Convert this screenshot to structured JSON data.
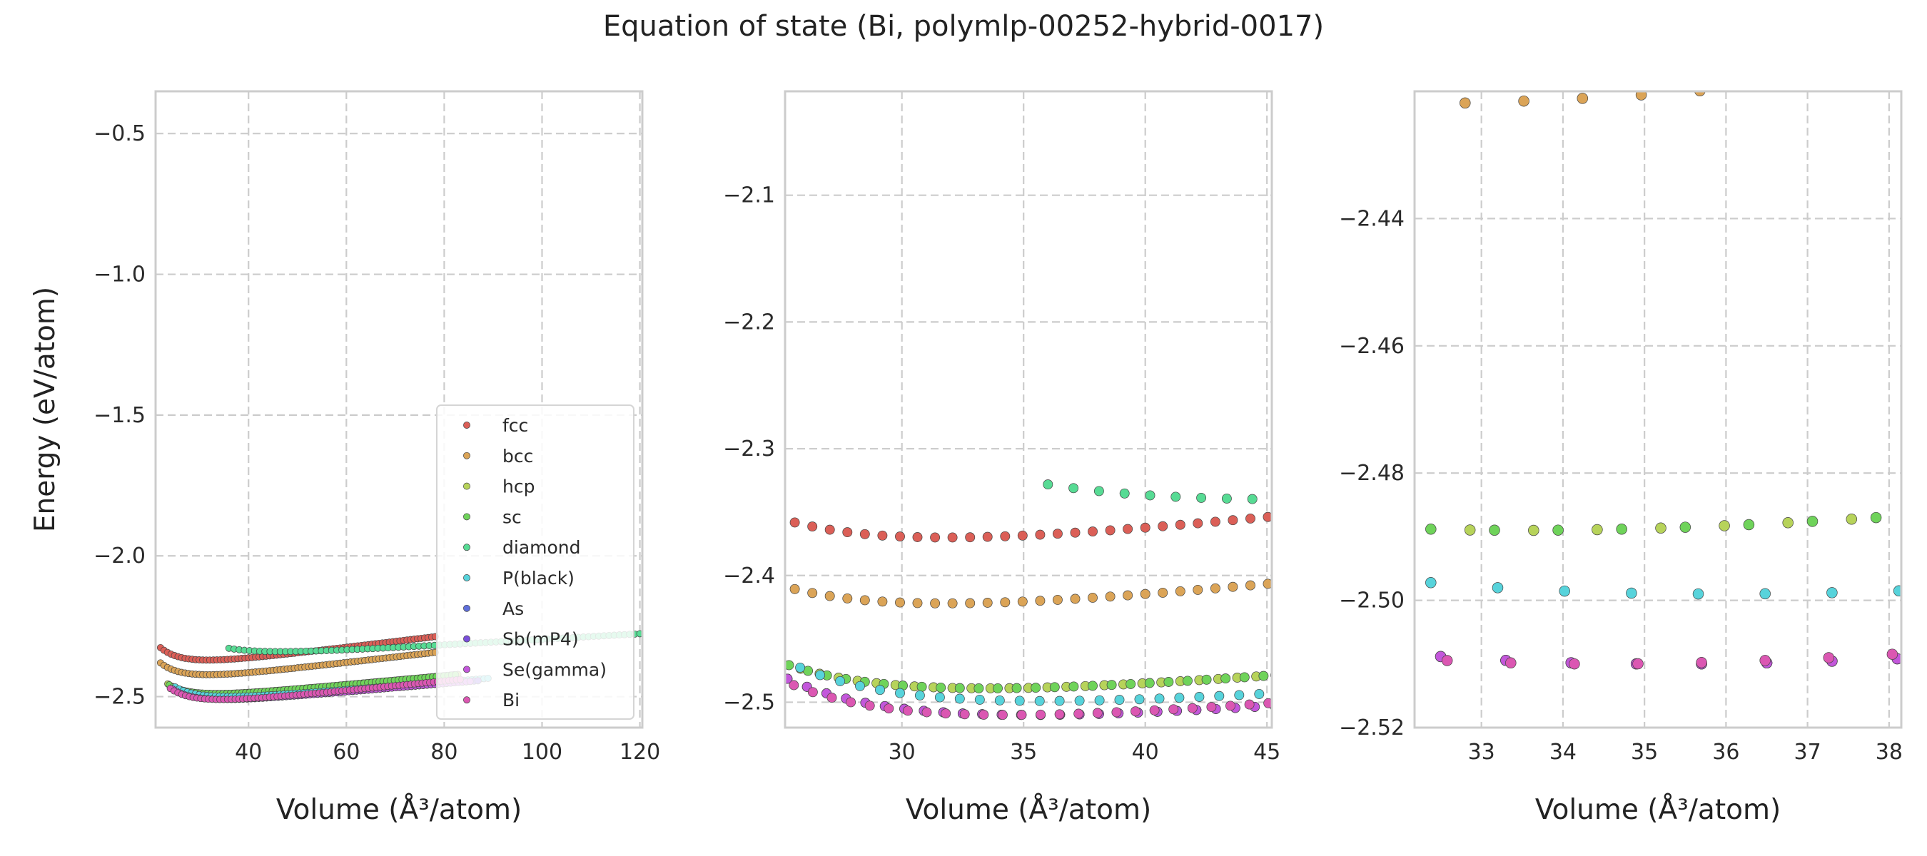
{
  "title": "Equation of state (Bi, polymlp-00252-hybrid-0017)",
  "colors": {
    "fcc": "#db5f57",
    "bcc": "#dba457",
    "hcp": "#b7d35a",
    "sc": "#6fd35a",
    "diamond": "#57db94",
    "P(black)": "#57d3db",
    "As": "#5f6fdb",
    "Sb(mP4)": "#7a4fdb",
    "Se(gamma)": "#c357db",
    "Bi": "#db57b2"
  },
  "chart_data": [
    {
      "type": "scatter",
      "xlabel": "Volume (Å³/atom)",
      "ylabel": "Energy (eV/atom)",
      "xlim": [
        21,
        120.5
      ],
      "ylim": [
        -2.61,
        -0.35
      ],
      "xticks": [
        "40",
        "60",
        "80",
        "100",
        "120"
      ],
      "yticks": [
        "−0.5",
        "−1.0",
        "−1.5",
        "−2.0",
        "−2.5"
      ],
      "grid": true,
      "legend": {
        "placement": "lower-right",
        "entries": [
          "fcc",
          "bcc",
          "hcp",
          "sc",
          "diamond",
          "P(black)",
          "As",
          "Sb(mP4)",
          "Se(gamma)",
          "Bi"
        ]
      },
      "series": [
        {
          "name": "fcc",
          "V0": 31.8,
          "E0": -2.37,
          "B": 0.0021,
          "n": 4.6,
          "vmin": 22.0,
          "vmax": 78.8,
          "step": 0.72
        },
        {
          "name": "bcc",
          "V0": 31.8,
          "E0": -2.422,
          "B": 0.002,
          "n": 4.6,
          "vmin": 22.0,
          "vmax": 78.8,
          "step": 0.72
        },
        {
          "name": "hcp",
          "V0": 33.5,
          "E0": -2.489,
          "B": 0.0016,
          "n": 4.8,
          "vmin": 23.5,
          "vmax": 83.5,
          "step": 0.78
        },
        {
          "name": "sc",
          "V0": 33.5,
          "E0": -2.489,
          "B": 0.0016,
          "n": 4.8,
          "vmin": 23.8,
          "vmax": 83.0,
          "step": 0.78
        },
        {
          "name": "diamond",
          "V0": 46.5,
          "E0": -2.34,
          "B": 0.001,
          "n": 4.5,
          "vmin": 36.0,
          "vmax": 120.5,
          "step": 1.05
        },
        {
          "name": "P(black)",
          "V0": 35.9,
          "E0": -2.499,
          "B": 0.0014,
          "n": 4.8,
          "vmin": 25.0,
          "vmax": 89.0,
          "step": 0.82
        },
        {
          "name": "As",
          "V0": 35.3,
          "E0": -2.51,
          "B": 0.0015,
          "n": 4.8,
          "vmin": 24.5,
          "vmax": 87.0,
          "step": 0.8
        },
        {
          "name": "Sb(mP4)",
          "V0": 35.3,
          "E0": -2.51,
          "B": 0.0015,
          "n": 4.8,
          "vmin": 24.5,
          "vmax": 87.0,
          "step": 0.8
        },
        {
          "name": "Se(gamma)",
          "V0": 35.3,
          "E0": -2.51,
          "B": 0.0015,
          "n": 4.8,
          "vmin": 24.5,
          "vmax": 86.0,
          "step": 0.8
        },
        {
          "name": "Bi",
          "V0": 34.4,
          "E0": -2.51,
          "B": 0.0017,
          "n": 4.8,
          "vmin": 24.0,
          "vmax": 84.0,
          "step": 0.78
        }
      ]
    },
    {
      "type": "scatter",
      "xlabel": "Volume (Å³/atom)",
      "ylabel": "",
      "xlim": [
        25.2,
        45.2
      ],
      "ylim": [
        -2.52,
        -2.018
      ],
      "xticks": [
        "30",
        "35",
        "40",
        "45"
      ],
      "yticks": [
        "−2.1",
        "−2.2",
        "−2.3",
        "−2.4",
        "−2.5"
      ],
      "grid": true,
      "series_ref": "same as panel 1"
    },
    {
      "type": "scatter",
      "xlabel": "Volume (Å³/atom)",
      "ylabel": "",
      "xlim": [
        32.18,
        38.15
      ],
      "ylim": [
        -2.52,
        -2.42
      ],
      "xticks": [
        "33",
        "34",
        "35",
        "36",
        "37",
        "38"
      ],
      "yticks": [
        "−2.44",
        "−2.46",
        "−2.48",
        "−2.50",
        "−2.52"
      ],
      "grid": true,
      "series_ref": "same as panel 1"
    }
  ]
}
